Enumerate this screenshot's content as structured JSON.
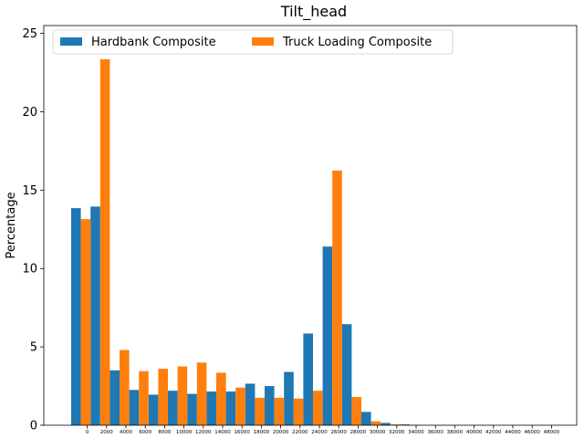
{
  "chart_data": {
    "type": "bar",
    "title": "Tilt_head",
    "xlabel": "",
    "ylabel": "Percentage",
    "ylim": [
      0,
      25.5
    ],
    "yticks": [
      0,
      5,
      10,
      15,
      20,
      25
    ],
    "categories": [
      "0",
      "2000",
      "4000",
      "6000",
      "8000",
      "10000",
      "12000",
      "14000",
      "16000",
      "18000",
      "20000",
      "22000",
      "24000",
      "26000",
      "28000",
      "30000",
      "32000",
      "34000",
      "36000",
      "38000",
      "40000",
      "42000",
      "44000",
      "46000",
      "48000"
    ],
    "series": [
      {
        "name": "Hardbank Composite",
        "color": "#1f77b4",
        "values": [
          13.85,
          13.95,
          3.5,
          2.25,
          1.95,
          2.2,
          2.0,
          2.15,
          2.15,
          2.65,
          2.5,
          3.4,
          5.85,
          11.4,
          6.45,
          0.85,
          0.15,
          0.05,
          0,
          0,
          0,
          0,
          0,
          0,
          0
        ]
      },
      {
        "name": "Truck Loading Composite",
        "color": "#ff7f0e",
        "values": [
          13.15,
          23.35,
          4.8,
          3.45,
          3.6,
          3.75,
          4.0,
          3.35,
          2.4,
          1.75,
          1.75,
          1.7,
          2.2,
          16.25,
          1.8,
          0.25,
          0.05,
          0.02,
          0,
          0,
          0,
          0,
          0,
          0,
          0
        ]
      }
    ],
    "legend_position": "top-left"
  }
}
